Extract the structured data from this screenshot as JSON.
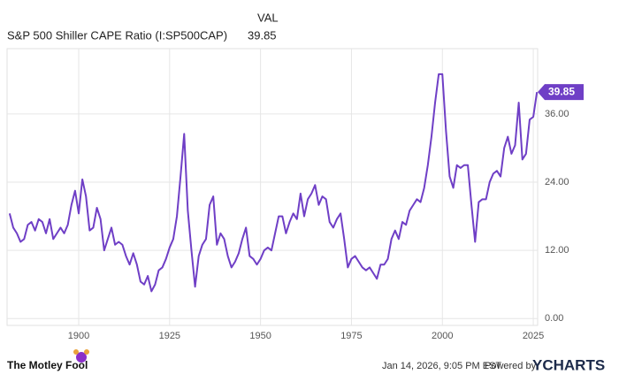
{
  "chart_data": {
    "type": "line",
    "series_header": "VAL",
    "footer_timestamp": "Jan 14, 2026, 9:05 PM EST",
    "footer_powered": "Powered by",
    "brand": "YCHARTS",
    "logo_text": "The Motley Fool",
    "x": [
      1881,
      1882,
      1883,
      1884,
      1885,
      1886,
      1887,
      1888,
      1889,
      1890,
      1891,
      1892,
      1893,
      1894,
      1895,
      1896,
      1897,
      1898,
      1899,
      1900,
      1901,
      1902,
      1903,
      1904,
      1905,
      1906,
      1907,
      1908,
      1909,
      1910,
      1911,
      1912,
      1913,
      1914,
      1915,
      1916,
      1917,
      1918,
      1919,
      1920,
      1921,
      1922,
      1923,
      1924,
      1925,
      1926,
      1927,
      1928,
      1929,
      1930,
      1931,
      1932,
      1933,
      1934,
      1935,
      1936,
      1937,
      1938,
      1939,
      1940,
      1941,
      1942,
      1943,
      1944,
      1945,
      1946,
      1947,
      1948,
      1949,
      1950,
      1951,
      1952,
      1953,
      1954,
      1955,
      1956,
      1957,
      1958,
      1959,
      1960,
      1961,
      1962,
      1963,
      1964,
      1965,
      1966,
      1967,
      1968,
      1969,
      1970,
      1971,
      1972,
      1973,
      1974,
      1975,
      1976,
      1977,
      1978,
      1979,
      1980,
      1981,
      1982,
      1983,
      1984,
      1985,
      1986,
      1987,
      1988,
      1989,
      1990,
      1991,
      1992,
      1993,
      1994,
      1995,
      1996,
      1997,
      1998,
      1999,
      2000,
      2001,
      2002,
      2003,
      2004,
      2005,
      2006,
      2007,
      2008,
      2009,
      2010,
      2011,
      2012,
      2013,
      2014,
      2015,
      2016,
      2017,
      2018,
      2019,
      2020,
      2021,
      2022,
      2023,
      2024,
      2025,
      2026
    ],
    "series": [
      {
        "name": "S&P 500 Shiller CAPE Ratio (I:SP500CAP)",
        "color": "#6f3fc6",
        "values": [
          18.5,
          16,
          15,
          13.5,
          14,
          16.5,
          17,
          15.5,
          17.5,
          17,
          15,
          17.5,
          14,
          15,
          16,
          15,
          16.5,
          20,
          22.5,
          18.5,
          24.5,
          21.5,
          15.5,
          16,
          19.5,
          17.5,
          12,
          14,
          16,
          13,
          13.5,
          13,
          11,
          9.5,
          11.5,
          9.5,
          6.5,
          6,
          7.5,
          4.8,
          6,
          8.5,
          9,
          10.5,
          12.5,
          14,
          18,
          25,
          32.5,
          19,
          12,
          5.6,
          11,
          13,
          14,
          20,
          21.5,
          13,
          15,
          14,
          11,
          9,
          10,
          11.5,
          14,
          16,
          11,
          10.5,
          9.5,
          10.5,
          12,
          12.5,
          12,
          15,
          18,
          18,
          15,
          17,
          18.5,
          17.5,
          22,
          18,
          21,
          22,
          23.5,
          20,
          21.5,
          21,
          17,
          16,
          17.5,
          18.5,
          14,
          9,
          10.5,
          11,
          10,
          9,
          8.5,
          9,
          8,
          7,
          9.5,
          9.5,
          10.5,
          14,
          15.5,
          14,
          17,
          16.5,
          19,
          20,
          21,
          20.5,
          23,
          27,
          32,
          38,
          43,
          43,
          33,
          25,
          23,
          27,
          26.5,
          27,
          27,
          20,
          13.5,
          20.5,
          21,
          21,
          24,
          25.5,
          26,
          25,
          30,
          32,
          29,
          30.5,
          38,
          28,
          29,
          35,
          35.5,
          39.85
        ]
      }
    ],
    "xlim": [
      1880.3,
      2026.2
    ],
    "ylim": [
      -1.2,
      47.5
    ],
    "xticks": [
      1900,
      1925,
      1950,
      1975,
      2000,
      2025
    ],
    "yticks": [
      {
        "value": 0,
        "label": "0.00"
      },
      {
        "value": 12,
        "label": "12.00"
      },
      {
        "value": 24,
        "label": "24.00"
      },
      {
        "value": 36,
        "label": "36.00"
      }
    ],
    "grid": true
  }
}
